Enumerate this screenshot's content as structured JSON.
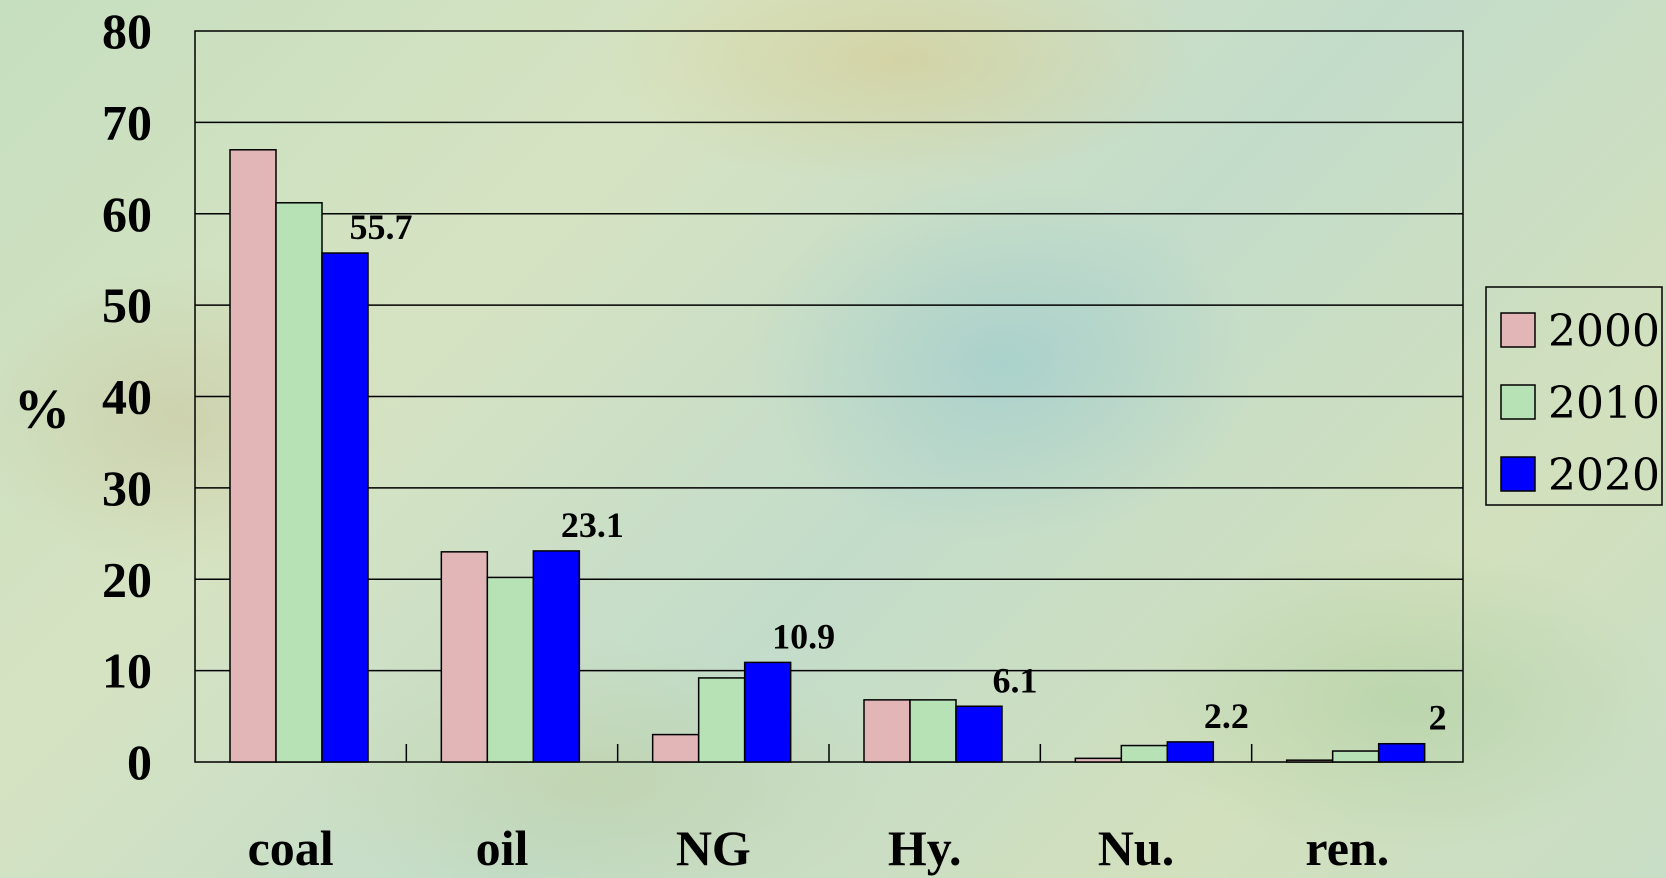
{
  "chart_data": {
    "type": "bar",
    "ylabel": "%",
    "xlabel": "",
    "ylim": [
      0,
      80
    ],
    "yticks": [
      0,
      10,
      20,
      30,
      40,
      50,
      60,
      70,
      80
    ],
    "categories": [
      "coal",
      "oil",
      "NG",
      "Hy.",
      "Nu.",
      "ren."
    ],
    "series": [
      {
        "name": "2000",
        "color": "#e2b6b6",
        "values": [
          67,
          23,
          3,
          6.8,
          0.4,
          0.2
        ]
      },
      {
        "name": "2010",
        "color": "#b6e2b6",
        "values": [
          61.2,
          20.2,
          9.2,
          6.8,
          1.8,
          1.2
        ]
      },
      {
        "name": "2020",
        "color": "#0000ff",
        "values": [
          55.7,
          23.1,
          10.9,
          6.1,
          2.2,
          2
        ]
      }
    ],
    "data_labels": [
      "55.7",
      "23.1",
      "10.9",
      "6.1",
      "2.2",
      "2"
    ],
    "grid": true,
    "legend": "right"
  }
}
